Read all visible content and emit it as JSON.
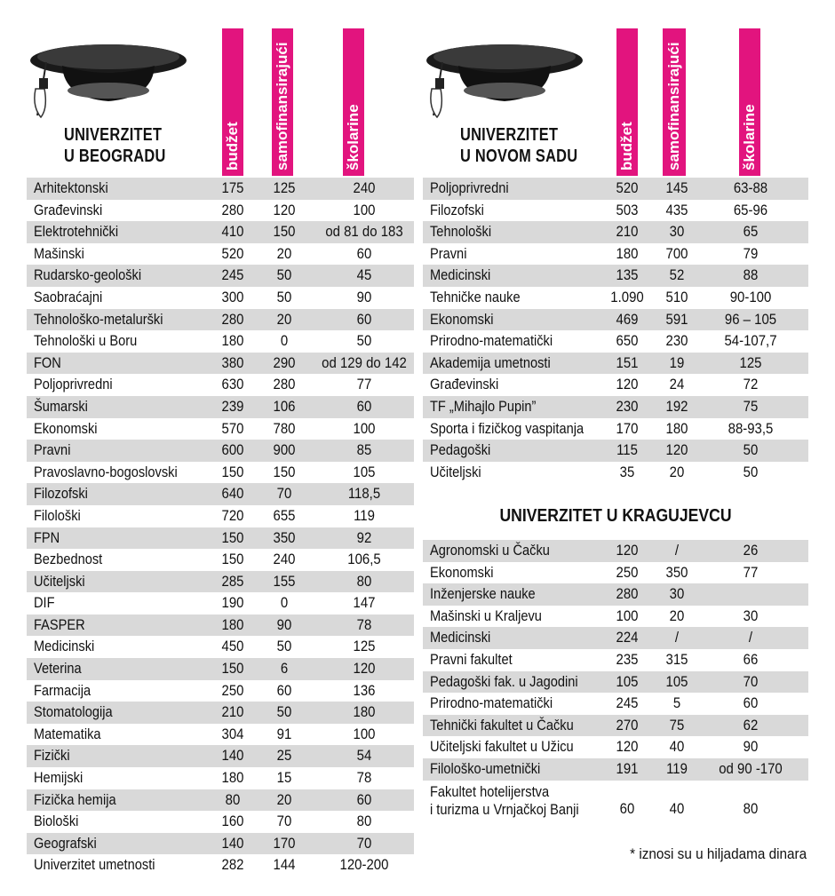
{
  "headers": {
    "budget": "budžet",
    "self": "samofinansirajući",
    "fees": "školarine"
  },
  "belgrade": {
    "title_line1": "UNIVERZITET",
    "title_line2": "U BEOGRADU",
    "rows": [
      [
        "Arhitektonski",
        "175",
        "125",
        "240"
      ],
      [
        "Građevinski",
        "280",
        "120",
        "100"
      ],
      [
        "Elektrotehnički",
        "410",
        "150",
        "od 81 do 183"
      ],
      [
        "Mašinski",
        "520",
        "20",
        "60"
      ],
      [
        "Rudarsko-geološki",
        "245",
        "50",
        "45"
      ],
      [
        "Saobraćajni",
        "300",
        "50",
        "90"
      ],
      [
        "Tehnološko-metalurški",
        "280",
        "20",
        "60"
      ],
      [
        "Tehnološki u Boru",
        "180",
        "0",
        "50"
      ],
      [
        "FON",
        "380",
        "290",
        "od 129 do 142"
      ],
      [
        "Poljoprivredni",
        "630",
        "280",
        "77"
      ],
      [
        "Šumarski",
        "239",
        "106",
        "60"
      ],
      [
        "Ekonomski",
        "570",
        "780",
        "100"
      ],
      [
        "Pravni",
        "600",
        "900",
        "85"
      ],
      [
        "Pravoslavno-bogoslovski",
        "150",
        "150",
        "105"
      ],
      [
        "Filozofski",
        "640",
        "70",
        "118,5"
      ],
      [
        "Filološki",
        "720",
        "655",
        "119"
      ],
      [
        "FPN",
        "150",
        "350",
        "92"
      ],
      [
        "Bezbednost",
        "150",
        "240",
        "106,5"
      ],
      [
        "Učiteljski",
        "285",
        "155",
        "80"
      ],
      [
        "DIF",
        "190",
        "0",
        "147"
      ],
      [
        "FASPER",
        "180",
        "90",
        "78"
      ],
      [
        "Medicinski",
        "450",
        "50",
        "125"
      ],
      [
        "Veterina",
        "150",
        "6",
        "120"
      ],
      [
        "Farmacija",
        "250",
        "60",
        "136"
      ],
      [
        "Stomatologija",
        "210",
        "50",
        "180"
      ],
      [
        "Matematika",
        "304",
        "91",
        "100"
      ],
      [
        "Fizički",
        "140",
        "25",
        "54"
      ],
      [
        "Hemijski",
        "180",
        "15",
        "78"
      ],
      [
        "Fizička hemija",
        "80",
        "20",
        "60"
      ],
      [
        "Biološki",
        "160",
        "70",
        "80"
      ],
      [
        "Geografski",
        "140",
        "170",
        "70"
      ],
      [
        "Univerzitet umetnosti",
        "282",
        "144",
        "120-200"
      ]
    ]
  },
  "novisad": {
    "title_line1": "UNIVERZITET",
    "title_line2": "U NOVOM SADU",
    "rows": [
      [
        "Poljoprivredni",
        "520",
        "145",
        "63-88"
      ],
      [
        "Filozofski",
        "503",
        "435",
        "65-96"
      ],
      [
        "Tehnološki",
        "210",
        "30",
        "65"
      ],
      [
        "Pravni",
        "180",
        "700",
        "79"
      ],
      [
        "Medicinski",
        "135",
        "52",
        "88"
      ],
      [
        "Tehničke nauke",
        "1.090",
        "510",
        "90-100"
      ],
      [
        "Ekonomski",
        "469",
        "591",
        "96 – 105"
      ],
      [
        "Prirodno-matematički",
        "650",
        "230",
        "54-107,7"
      ],
      [
        "Akademija umetnosti",
        "151",
        "19",
        "125"
      ],
      [
        "Građevinski",
        "120",
        "24",
        "72"
      ],
      [
        "TF „Mihajlo Pupin”",
        "230",
        "192",
        "75"
      ],
      [
        "Sporta i fizičkog vaspitanja",
        "170",
        "180",
        "88-93,5"
      ],
      [
        "Pedagoški",
        "115",
        "120",
        "50"
      ],
      [
        "Učiteljski",
        "35",
        "20",
        "50"
      ]
    ]
  },
  "kragujevac": {
    "title": "UNIVERZITET U KRAGUJEVCU",
    "rows": [
      [
        "Agronomski u Čačku",
        "120",
        "/",
        "26"
      ],
      [
        "Ekonomski",
        "250",
        "350",
        "77"
      ],
      [
        "Inženjerske nauke",
        "280",
        "30",
        ""
      ],
      [
        "Mašinski u Kraljevu",
        "100",
        "20",
        "30"
      ],
      [
        "Medicinski",
        "224",
        "/",
        "/"
      ],
      [
        "Pravni fakultet",
        "235",
        "315",
        "66"
      ],
      [
        "Pedagoški fak. u Jagodini",
        "105",
        "105",
        "70"
      ],
      [
        "Prirodno-matematički",
        "245",
        "5",
        "60"
      ],
      [
        "Tehnički fakultet u Čačku",
        "270",
        "75",
        "62"
      ],
      [
        "Učiteljski fakultet u Užicu",
        "120",
        "40",
        "90"
      ],
      [
        "Filološko-umetnički",
        "191",
        "119",
        "od 90 -170"
      ]
    ],
    "last_row": {
      "name_line1": "Fakultet hotelijerstva",
      "name_line2": "i turizma u Vrnjačkoj Banji",
      "budget": "60",
      "self": "40",
      "fees": "80"
    }
  },
  "footnote": "* iznosi su u hiljadama dinara",
  "colors": {
    "accent": "#e2147e",
    "stripe": "#d9d9d9"
  },
  "icons": [
    "graduation-cap-icon"
  ]
}
